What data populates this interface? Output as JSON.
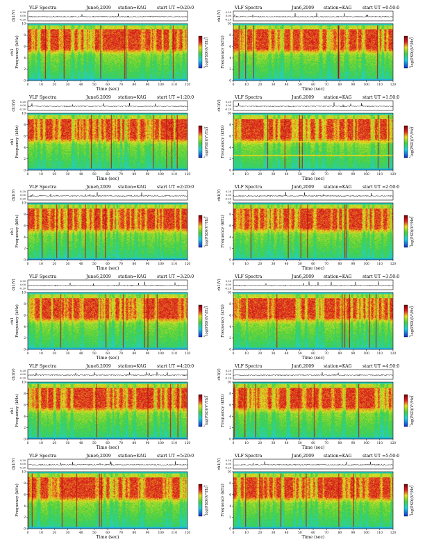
{
  "page": {
    "panels": [
      {
        "title": "VLF Spectra",
        "date": "June6,2009",
        "station": "station=KAG",
        "start": "start  UT =0:20:0",
        "ch_label": "ch1",
        "seed": 11,
        "bands": []
      },
      {
        "title": "VLF Spectra",
        "date": "Jun6,2009",
        "station": "station=KAG",
        "start": "start  UT =0:50:0",
        "ch_label": "",
        "seed": 23,
        "bands": []
      },
      {
        "title": "VLF Spectra",
        "date": "June6,2009",
        "station": "station=KAG",
        "start": "start  UT =1:20:0",
        "ch_label": "ch1",
        "seed": 37,
        "bands": []
      },
      {
        "title": "VLF Spectra",
        "date": "Jun6,2009",
        "station": "station=KAG",
        "start": "start  UT =1:50:0",
        "ch_label": "",
        "seed": 41,
        "bands": [
          2.6,
          5.0
        ]
      },
      {
        "title": "VLF Spectra",
        "date": "June6,2009",
        "station": "station=KAG",
        "start": "start  UT =2:20:0",
        "ch_label": "ch1",
        "seed": 53,
        "bands": []
      },
      {
        "title": "VLF Spectra",
        "date": "Jun6,2009",
        "station": "station=KAG",
        "start": "start  UT =2:50:0",
        "ch_label": "",
        "seed": 67,
        "bands": []
      },
      {
        "title": "VLF Spectra",
        "date": "June6,2009",
        "station": "station=KAG",
        "start": "start  UT =3:20:0",
        "ch_label": "ch1",
        "seed": 71,
        "bands": []
      },
      {
        "title": "VLF Spectra",
        "date": "Jun6,2009",
        "station": "station=KAG",
        "start": "start  UT =3:50:0",
        "ch_label": "",
        "seed": 83,
        "bands": []
      },
      {
        "title": "VLF Spectra",
        "date": "June6,2009",
        "station": "station=KAG",
        "start": "start  UT =4:20:0",
        "ch_label": "ch1",
        "seed": 97,
        "bands": []
      },
      {
        "title": "VLF Spectra",
        "date": "Jun6,2009",
        "station": "station=KAG",
        "start": "start  UT =4:50:0",
        "ch_label": "",
        "seed": 101,
        "bands": []
      },
      {
        "title": "VLF Spectra",
        "date": "June6,2009",
        "station": "station=KAG",
        "start": "start  UT =5:20:0",
        "ch_label": "",
        "seed": 113,
        "bands": []
      },
      {
        "title": "VLF Spectra",
        "date": "Jun6,2009",
        "station": "station=KAG",
        "start": "start  UT =5:50:0",
        "ch_label": "",
        "seed": 127,
        "bands": []
      }
    ],
    "waveform_ylabel": "ch1(V)",
    "waveform_ticks": [
      "0.20",
      "0.00",
      "-0.20"
    ],
    "freq_ylabel": "Frequency (kHz)",
    "colorbar_label": "log(PSD)(V²/Hz)",
    "colorbar_ticks": [
      "2",
      "3"
    ],
    "colors": {
      "low": "#1030d0",
      "cyan": "#20d0e0",
      "green": "#40d040",
      "yellow": "#e8e020",
      "red": "#e02020",
      "dark_red": "#800000"
    }
  },
  "chart_data": [
    {
      "type": "heatmap",
      "title": "VLF Spectra  June6,2009  station=KAG  start  UT =0:20:0",
      "xlabel": "Time (sec)",
      "ylabel": "Frequency (kHz)",
      "xlim": [
        0,
        120
      ],
      "ylim": [
        0,
        10
      ],
      "x_ticks": [
        0,
        10,
        20,
        30,
        40,
        50,
        60,
        70,
        80,
        90,
        100,
        110,
        120
      ],
      "y_ticks": [
        0,
        2,
        4,
        6,
        8,
        10
      ]
    },
    {
      "type": "heatmap",
      "title": "VLF Spectra  Jun6,2009  station=KAG  start  UT =0:50:0",
      "xlabel": "Time (sec)",
      "ylabel": "Frequency (kHz)",
      "xlim": [
        0,
        120
      ],
      "ylim": [
        0,
        10
      ],
      "x_ticks": [
        0,
        10,
        20,
        30,
        40,
        50,
        60,
        70,
        80,
        90,
        100,
        110,
        120
      ],
      "y_ticks": [
        0,
        2,
        4,
        6,
        8,
        10
      ]
    },
    {
      "type": "heatmap",
      "title": "VLF Spectra  June6,2009  station=KAG  start  UT =1:20:0",
      "xlabel": "Time (sec)",
      "ylabel": "Frequency (kHz)",
      "xlim": [
        0,
        120
      ],
      "ylim": [
        0,
        10
      ],
      "x_ticks": [
        0,
        10,
        20,
        30,
        40,
        50,
        60,
        70,
        80,
        90,
        100,
        110,
        120
      ],
      "y_ticks": [
        0,
        2,
        4,
        6,
        8,
        10
      ]
    },
    {
      "type": "heatmap",
      "title": "VLF Spectra  Jun6,2009  station=KAG  start  UT =1:50:0",
      "xlabel": "Time (sec)",
      "ylabel": "Frequency (kHz)",
      "xlim": [
        0,
        120
      ],
      "ylim": [
        0,
        10
      ],
      "x_ticks": [
        0,
        10,
        20,
        30,
        40,
        50,
        60,
        70,
        80,
        90,
        100,
        110,
        120
      ],
      "y_ticks": [
        0,
        2,
        4,
        6,
        8,
        10
      ]
    },
    {
      "type": "heatmap",
      "title": "VLF Spectra  June6,2009  station=KAG  start  UT =2:20:0",
      "xlabel": "Time (sec)",
      "ylabel": "Frequency (kHz)",
      "xlim": [
        0,
        120
      ],
      "ylim": [
        0,
        10
      ],
      "x_ticks": [
        0,
        10,
        20,
        30,
        40,
        50,
        60,
        70,
        80,
        90,
        100,
        110,
        120
      ],
      "y_ticks": [
        0,
        2,
        4,
        6,
        8,
        10
      ]
    },
    {
      "type": "heatmap",
      "title": "VLF Spectra  Jun6,2009  station=KAG  start  UT =2:50:0",
      "xlabel": "Time (sec)",
      "ylabel": "Frequency (kHz)",
      "xlim": [
        0,
        120
      ],
      "ylim": [
        0,
        10
      ],
      "x_ticks": [
        0,
        10,
        20,
        30,
        40,
        50,
        60,
        70,
        80,
        90,
        100,
        110,
        120
      ],
      "y_ticks": [
        0,
        2,
        4,
        6,
        8,
        10
      ]
    },
    {
      "type": "heatmap",
      "title": "VLF Spectra  June6,2009  station=KAG  start  UT =3:20:0",
      "xlabel": "Time (sec)",
      "ylabel": "Frequency (kHz)",
      "xlim": [
        0,
        120
      ],
      "ylim": [
        0,
        10
      ],
      "x_ticks": [
        0,
        10,
        20,
        30,
        40,
        50,
        60,
        70,
        80,
        90,
        100,
        110,
        120
      ],
      "y_ticks": [
        0,
        2,
        4,
        6,
        8,
        10
      ]
    },
    {
      "type": "heatmap",
      "title": "VLF Spectra  Jun6,2009  station=KAG  start  UT =3:50:0",
      "xlabel": "Time (sec)",
      "ylabel": "Frequency (kHz)",
      "xlim": [
        0,
        120
      ],
      "ylim": [
        0,
        10
      ],
      "x_ticks": [
        0,
        10,
        20,
        30,
        40,
        50,
        60,
        70,
        80,
        90,
        100,
        110,
        120
      ],
      "y_ticks": [
        0,
        2,
        4,
        6,
        8,
        10
      ]
    },
    {
      "type": "heatmap",
      "title": "VLF Spectra  June6,2009  station=KAG  start  UT =4:20:0",
      "xlabel": "Time (sec)",
      "ylabel": "Frequency (kHz)",
      "xlim": [
        0,
        120
      ],
      "ylim": [
        0,
        10
      ],
      "x_ticks": [
        0,
        10,
        20,
        30,
        40,
        50,
        60,
        70,
        80,
        90,
        100,
        110,
        120
      ],
      "y_ticks": [
        0,
        2,
        4,
        6,
        8,
        10
      ]
    },
    {
      "type": "heatmap",
      "title": "VLF Spectra  Jun6,2009  station=KAG  start  UT =4:50:0",
      "xlabel": "Time (sec)",
      "ylabel": "Frequency (kHz)",
      "xlim": [
        0,
        120
      ],
      "ylim": [
        0,
        10
      ],
      "x_ticks": [
        0,
        10,
        20,
        30,
        40,
        50,
        60,
        70,
        80,
        90,
        100,
        110,
        120
      ],
      "y_ticks": [
        0,
        2,
        4,
        6,
        8,
        10
      ]
    },
    {
      "type": "heatmap",
      "title": "VLF Spectra  June6,2009  station=KAG  start  UT =5:20:0",
      "xlabel": "Time (sec)",
      "ylabel": "Frequency (kHz)",
      "xlim": [
        0,
        120
      ],
      "ylim": [
        0,
        10
      ],
      "x_ticks": [
        0,
        10,
        20,
        30,
        40,
        50,
        60,
        70,
        80,
        90,
        100,
        110,
        120
      ],
      "y_ticks": [
        0,
        2,
        4,
        6,
        8,
        10
      ]
    },
    {
      "type": "heatmap",
      "title": "VLF Spectra  Jun6,2009  station=KAG  start  UT =5:50:0",
      "xlabel": "Time (sec)",
      "ylabel": "Frequency (kHz)",
      "xlim": [
        0,
        120
      ],
      "ylim": [
        0,
        10
      ],
      "x_ticks": [
        0,
        10,
        20,
        30,
        40,
        50,
        60,
        70,
        80,
        90,
        100,
        110,
        120
      ],
      "y_ticks": [
        0,
        2,
        4,
        6,
        8,
        10
      ]
    }
  ]
}
